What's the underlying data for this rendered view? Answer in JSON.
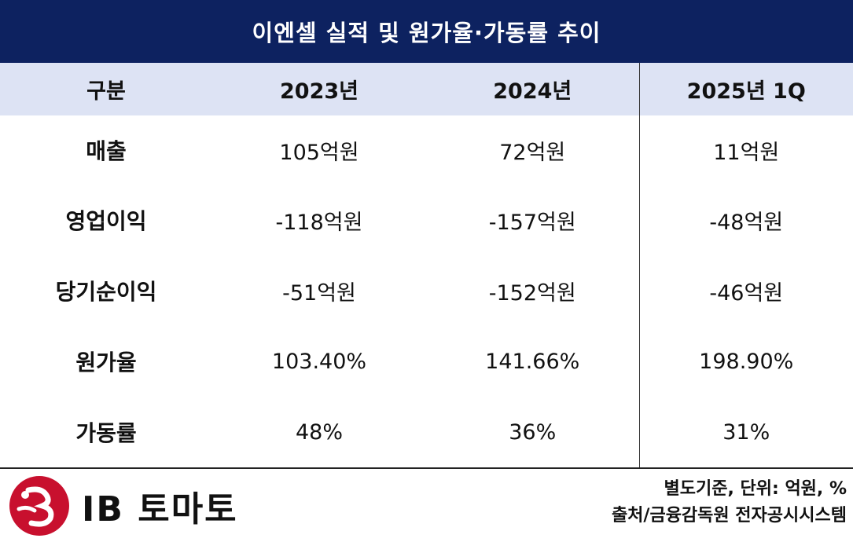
{
  "title": "이엔셀 실적 및 원가율·가동률 추이",
  "headers": [
    "구분",
    "2023년",
    "2024년",
    "2025년 1Q"
  ],
  "rows": [
    {
      "label": "매출",
      "values": [
        "105억원",
        "72억원",
        "11억원"
      ]
    },
    {
      "label": "영업이익",
      "values": [
        "-118억원",
        "-157억원",
        "-48억원"
      ]
    },
    {
      "label": "당기순이익",
      "values": [
        "-51억원",
        "-152억원",
        "-46억원"
      ]
    },
    {
      "label": "원가율",
      "values": [
        "103.40%",
        "141.66%",
        "198.90%"
      ]
    },
    {
      "label": "가동률",
      "values": [
        "48%",
        "36%",
        "31%"
      ]
    }
  ],
  "footer": {
    "logo_text": "IB 토마토",
    "note1": "별도기준, 단위: 억원, %",
    "note2": "출처/금융감독원 전자공시시스템"
  },
  "colors": {
    "title_bg": "#0d2260",
    "header_bg": "#dde3f4",
    "logo_red": "#c8102e"
  }
}
